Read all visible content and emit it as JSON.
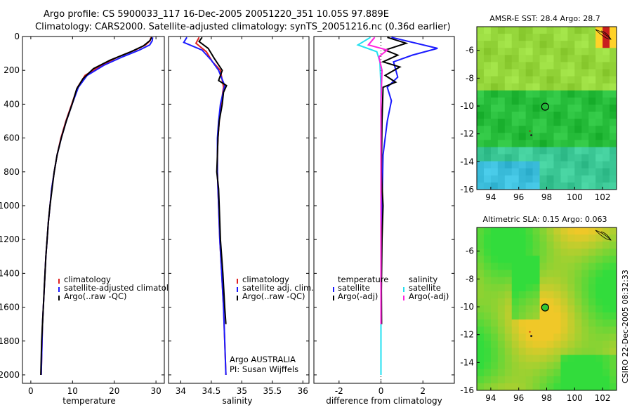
{
  "figure": {
    "title_line1": "Argo profile: CS 5900033_117 16-Dec-2005 20051220_351 10.05S 97.889E",
    "title_line2": "Climatology: CARS2000. Satellite-adjusted climatology: synTS_20051216.nc (0.36d earlier)",
    "footer": "CSIRO 22-Dec-2005 08:32:33",
    "argo_label": "Argo AUSTRALIA",
    "pi_label": "PI: Susan Wijffels"
  },
  "colors": {
    "climatology": "#e02020",
    "satellite": "#1a1aff",
    "argo": "#000000",
    "sal_satellite": "#22e0f0",
    "sal_argo": "#ff22dd"
  },
  "chart_data": [
    {
      "type": "line",
      "id": "temperature",
      "xlabel": "temperature",
      "ylabel": "",
      "xlim": [
        -2,
        32
      ],
      "ylim": [
        2050,
        0
      ],
      "xticks": [
        0,
        10,
        20,
        30
      ],
      "yticks": [
        0,
        200,
        400,
        600,
        800,
        1000,
        1200,
        1400,
        1600,
        1800,
        2000
      ],
      "legend": [
        "climatology",
        "satellite-adjusted climatology",
        "Argo(..raw -QC)"
      ],
      "series": [
        {
          "name": "climatology",
          "color": "#e02020",
          "points": [
            [
              28.8,
              5
            ],
            [
              28.6,
              25
            ],
            [
              27.5,
              50
            ],
            [
              25,
              80
            ],
            [
              21,
              120
            ],
            [
              17,
              170
            ],
            [
              13,
              230
            ],
            [
              11.2,
              300
            ],
            [
              9.8,
              400
            ],
            [
              8.4,
              500
            ],
            [
              7.2,
              600
            ],
            [
              6.3,
              700
            ],
            [
              5.6,
              800
            ],
            [
              5,
              900
            ],
            [
              4.6,
              1000
            ],
            [
              4.2,
              1100
            ],
            [
              3.9,
              1200
            ],
            [
              3.6,
              1300
            ],
            [
              3.4,
              1400
            ],
            [
              3.2,
              1500
            ],
            [
              3,
              1600
            ],
            [
              2.8,
              1700
            ],
            [
              2.7,
              1800
            ],
            [
              2.6,
              1900
            ],
            [
              2.5,
              2000
            ]
          ]
        },
        {
          "name": "satellite-adjusted climatology",
          "color": "#1a1aff",
          "points": [
            [
              29.2,
              5
            ],
            [
              29.1,
              25
            ],
            [
              28.5,
              50
            ],
            [
              26,
              80
            ],
            [
              22,
              120
            ],
            [
              17.5,
              170
            ],
            [
              13.5,
              230
            ],
            [
              11.4,
              300
            ],
            [
              9.9,
              400
            ],
            [
              8.5,
              500
            ],
            [
              7.3,
              600
            ],
            [
              6.3,
              700
            ],
            [
              5.6,
              800
            ],
            [
              5,
              900
            ],
            [
              4.6,
              1000
            ],
            [
              4.2,
              1100
            ],
            [
              3.9,
              1200
            ],
            [
              3.6,
              1300
            ],
            [
              3.4,
              1400
            ],
            [
              3.2,
              1500
            ],
            [
              3,
              1600
            ],
            [
              2.8,
              1700
            ],
            [
              2.7,
              1800
            ],
            [
              2.6,
              1900
            ],
            [
              2.5,
              2000
            ]
          ]
        },
        {
          "name": "Argo(..raw -QC)",
          "color": "#000000",
          "points": [
            [
              29,
              5
            ],
            [
              28.5,
              25
            ],
            [
              27,
              55
            ],
            [
              24,
              90
            ],
            [
              19,
              140
            ],
            [
              15,
              190
            ],
            [
              12.5,
              250
            ],
            [
              11,
              310
            ],
            [
              9.9,
              400
            ],
            [
              8.5,
              500
            ],
            [
              7.3,
              600
            ],
            [
              6.3,
              700
            ],
            [
              5.6,
              800
            ],
            [
              5.1,
              900
            ],
            [
              4.6,
              1000
            ],
            [
              4.2,
              1100
            ],
            [
              3.9,
              1200
            ],
            [
              3.6,
              1300
            ],
            [
              3.4,
              1400
            ],
            [
              3.2,
              1500
            ],
            [
              3,
              1600
            ],
            [
              2.8,
              1700
            ],
            [
              2.6,
              1800
            ],
            [
              2.5,
              1900
            ],
            [
              2.4,
              2000
            ]
          ]
        }
      ]
    },
    {
      "type": "line",
      "id": "salinity",
      "xlabel": "salinity",
      "xlim": [
        33.8,
        36.1
      ],
      "ylim": [
        2050,
        0
      ],
      "xticks": [
        34,
        34.5,
        35,
        35.5,
        36
      ],
      "legend": [
        "climatology",
        "satellite adj. clim.",
        "Argo(..raw -QC)"
      ],
      "series": [
        {
          "name": "climatology",
          "color": "#e02020",
          "points": [
            [
              34.3,
              5
            ],
            [
              34.25,
              40
            ],
            [
              34.42,
              90
            ],
            [
              34.52,
              150
            ],
            [
              34.65,
              200
            ],
            [
              34.7,
              300
            ],
            [
              34.66,
              400
            ],
            [
              34.63,
              500
            ],
            [
              34.61,
              600
            ],
            [
              34.6,
              700
            ],
            [
              34.6,
              800
            ],
            [
              34.61,
              900
            ],
            [
              34.62,
              1000
            ],
            [
              34.64,
              1200
            ],
            [
              34.67,
              1400
            ],
            [
              34.7,
              1600
            ],
            [
              34.72,
              1800
            ],
            [
              34.74,
              2000
            ]
          ]
        },
        {
          "name": "satellite adj. clim.",
          "color": "#1a1aff",
          "points": [
            [
              34.1,
              5
            ],
            [
              34.05,
              35
            ],
            [
              34.35,
              80
            ],
            [
              34.5,
              140
            ],
            [
              34.62,
              200
            ],
            [
              34.72,
              290
            ],
            [
              34.65,
              400
            ],
            [
              34.62,
              500
            ],
            [
              34.6,
              600
            ],
            [
              34.6,
              700
            ],
            [
              34.6,
              800
            ],
            [
              34.61,
              900
            ],
            [
              34.62,
              1000
            ],
            [
              34.64,
              1200
            ],
            [
              34.67,
              1400
            ],
            [
              34.7,
              1600
            ],
            [
              34.72,
              1800
            ],
            [
              34.74,
              2000
            ]
          ]
        },
        {
          "name": "Argo(..raw -QC)",
          "color": "#000000",
          "points": [
            [
              34.35,
              5
            ],
            [
              34.3,
              30
            ],
            [
              34.45,
              70
            ],
            [
              34.55,
              130
            ],
            [
              34.68,
              200
            ],
            [
              34.62,
              260
            ],
            [
              34.75,
              290
            ],
            [
              34.7,
              330
            ],
            [
              34.68,
              400
            ],
            [
              34.63,
              500
            ],
            [
              34.61,
              600
            ],
            [
              34.6,
              700
            ],
            [
              34.59,
              800
            ],
            [
              34.62,
              900
            ],
            [
              34.63,
              1000
            ],
            [
              34.65,
              1200
            ],
            [
              34.69,
              1400
            ],
            [
              34.72,
              1600
            ],
            [
              34.74,
              1700
            ]
          ]
        }
      ]
    },
    {
      "type": "line",
      "id": "difference",
      "xlabel": "difference from climatology",
      "xlim": [
        -3.2,
        3.5
      ],
      "ylim": [
        2050,
        0
      ],
      "xticks": [
        -2,
        0,
        2
      ],
      "legend_temperature_header": "temperature",
      "legend_salinity_header": "salinity",
      "legend": [
        "satellite",
        "Argo(-adj)",
        "satellite",
        "Argo(-adj)"
      ],
      "series": [
        {
          "name": "temperature satellite",
          "color": "#1a1aff",
          "points": [
            [
              0.5,
              5
            ],
            [
              2.7,
              70
            ],
            [
              1.5,
              110
            ],
            [
              0.6,
              150
            ],
            [
              0.8,
              240
            ],
            [
              0.3,
              300
            ],
            [
              0.5,
              380
            ],
            [
              0.3,
              500
            ],
            [
              0.1,
              700
            ],
            [
              0.05,
              1000
            ],
            [
              0,
              1500
            ],
            [
              0,
              1900
            ]
          ]
        },
        {
          "name": "temperature Argo(-adj)",
          "color": "#000000",
          "points": [
            [
              0.3,
              5
            ],
            [
              1.2,
              40
            ],
            [
              0.2,
              80
            ],
            [
              0.8,
              110
            ],
            [
              0.1,
              150
            ],
            [
              0.9,
              180
            ],
            [
              0.2,
              230
            ],
            [
              0.7,
              270
            ],
            [
              0.1,
              300
            ],
            [
              0.05,
              500
            ],
            [
              0.02,
              800
            ],
            [
              0.1,
              1000
            ],
            [
              0.05,
              1200
            ],
            [
              0.02,
              1500
            ],
            [
              0.03,
              1700
            ]
          ]
        },
        {
          "name": "salinity satellite",
          "color": "#22e0f0",
          "points": [
            [
              -0.5,
              5
            ],
            [
              -1.1,
              50
            ],
            [
              -0.2,
              90
            ],
            [
              -0.05,
              150
            ],
            [
              0,
              300
            ],
            [
              0,
              600
            ],
            [
              0,
              1000
            ],
            [
              0,
              1500
            ],
            [
              0,
              2000
            ]
          ]
        },
        {
          "name": "salinity Argo(-adj)",
          "color": "#ff22dd",
          "points": [
            [
              -0.3,
              5
            ],
            [
              -0.6,
              50
            ],
            [
              0.3,
              80
            ],
            [
              -0.1,
              120
            ],
            [
              0.05,
              200
            ],
            [
              0,
              400
            ],
            [
              0,
              800
            ],
            [
              0,
              1200
            ],
            [
              0,
              1700
            ]
          ]
        }
      ]
    },
    {
      "type": "heatmap",
      "id": "sst_map",
      "title": "AMSR-E SST: 28.4 Argo: 28.7",
      "xlim": [
        93,
        103
      ],
      "ylim": [
        -16,
        -4.3
      ],
      "xticks": [
        94,
        96,
        98,
        100,
        102
      ],
      "yticks": [
        -6,
        -8,
        -10,
        -12,
        -14,
        -16
      ],
      "float_lon": 97.889,
      "float_lat": -10.05
    },
    {
      "type": "heatmap",
      "id": "sla_map",
      "title": "Altimetric SLA: 0.15 Argo: 0.063",
      "xlim": [
        93,
        103
      ],
      "ylim": [
        -16,
        -4.3
      ],
      "xticks": [
        94,
        96,
        98,
        100,
        102
      ],
      "yticks": [
        -6,
        -8,
        -10,
        -12,
        -14,
        -16
      ],
      "float_lon": 97.889,
      "float_lat": -10.05
    }
  ]
}
